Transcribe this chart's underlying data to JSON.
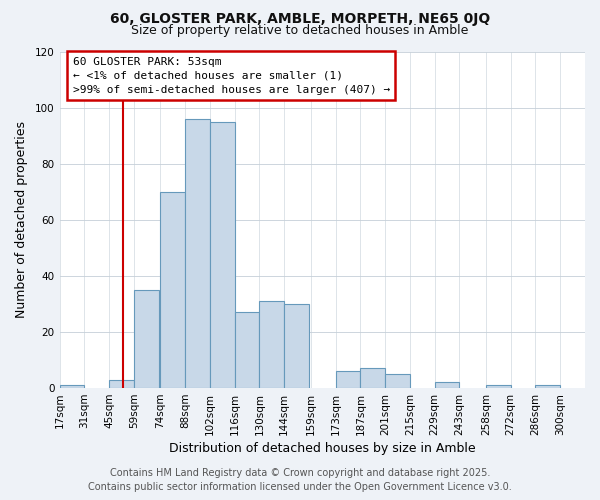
{
  "title": "60, GLOSTER PARK, AMBLE, MORPETH, NE65 0JQ",
  "subtitle": "Size of property relative to detached houses in Amble",
  "xlabel": "Distribution of detached houses by size in Amble",
  "ylabel": "Number of detached properties",
  "bin_labels": [
    "17sqm",
    "31sqm",
    "45sqm",
    "59sqm",
    "74sqm",
    "88sqm",
    "102sqm",
    "116sqm",
    "130sqm",
    "144sqm",
    "159sqm",
    "173sqm",
    "187sqm",
    "201sqm",
    "215sqm",
    "229sqm",
    "243sqm",
    "258sqm",
    "272sqm",
    "286sqm",
    "300sqm"
  ],
  "bin_edges": [
    17,
    31,
    45,
    59,
    74,
    88,
    102,
    116,
    130,
    144,
    159,
    173,
    187,
    201,
    215,
    229,
    243,
    258,
    272,
    286,
    300
  ],
  "bar_heights": [
    1,
    0,
    3,
    35,
    70,
    96,
    95,
    27,
    31,
    30,
    0,
    6,
    7,
    5,
    0,
    2,
    0,
    1,
    0,
    1
  ],
  "bar_color": "#c8d8e8",
  "bar_edge_color": "#6699bb",
  "ylim": [
    0,
    120
  ],
  "yticks": [
    0,
    20,
    40,
    60,
    80,
    100,
    120
  ],
  "vline_x": 53,
  "vline_color": "#cc0000",
  "annotation_text": "60 GLOSTER PARK: 53sqm\n← <1% of detached houses are smaller (1)\n>99% of semi-detached houses are larger (407) →",
  "footer_line1": "Contains HM Land Registry data © Crown copyright and database right 2025.",
  "footer_line2": "Contains public sector information licensed under the Open Government Licence v3.0.",
  "bg_color": "#eef2f7",
  "plot_bg_color": "#ffffff",
  "title_fontsize": 10,
  "subtitle_fontsize": 9,
  "axis_label_fontsize": 9,
  "tick_fontsize": 7.5,
  "annotation_fontsize": 8,
  "footer_fontsize": 7
}
